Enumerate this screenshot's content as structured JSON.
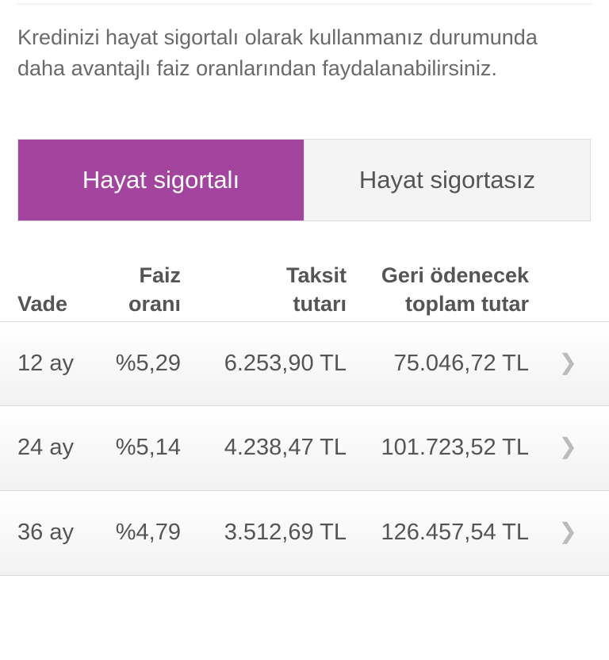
{
  "intro_text": "Kredinizi hayat sigortalı olarak kullanmanız durumunda daha avantajlı faiz oranlarından faydalanabilirsiniz.",
  "toggle": {
    "options": [
      "Hayat sigortalı",
      "Hayat sigortasız"
    ],
    "selected": "Hayat sigortalı",
    "accent_color": "#a3459e"
  },
  "table": {
    "headers": {
      "vade": "Vade",
      "faiz_1": "Faiz",
      "faiz_2": "oranı",
      "taksit_1": "Taksit",
      "taksit_2": "tutarı",
      "toplam_1": "Geri ödenecek",
      "toplam_2": "toplam tutar"
    },
    "rows": [
      {
        "vade": "12 ay",
        "faiz": "%5,29",
        "taksit": "6.253,90 TL",
        "toplam": "75.046,72 TL"
      },
      {
        "vade": "24 ay",
        "faiz": "%5,14",
        "taksit": "4.238,47 TL",
        "toplam": "101.723,52 TL"
      },
      {
        "vade": "36 ay",
        "faiz": "%4,79",
        "taksit": "3.512,69 TL",
        "toplam": "126.457,54 TL"
      }
    ]
  }
}
